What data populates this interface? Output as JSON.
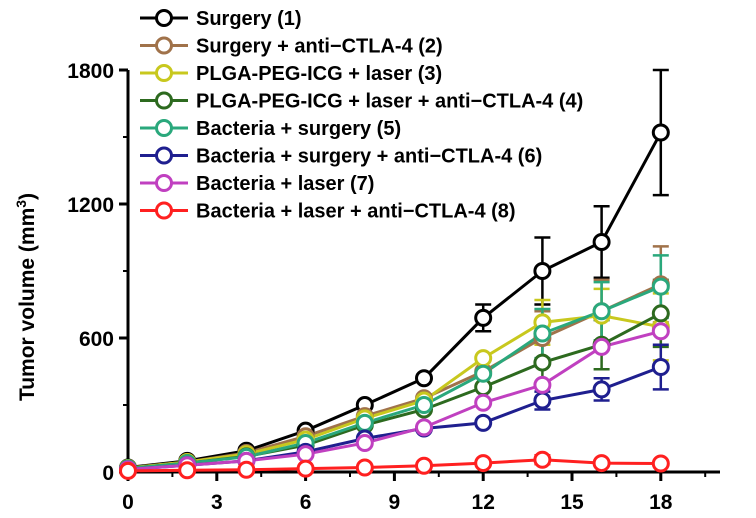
{
  "chart_data": {
    "type": "line",
    "title": "",
    "xlabel": "",
    "ylabel": "Tumor volume (mm",
    "ylabel_sup": "3",
    "ylabel_close": ")",
    "xlim": [
      0,
      20
    ],
    "ylim": [
      0,
      1800
    ],
    "x_ticks": [
      0,
      3,
      6,
      9,
      12,
      15,
      18
    ],
    "y_ticks": [
      0,
      600,
      1200,
      1800
    ],
    "grid": false,
    "legend_position": "top-left",
    "x": [
      0,
      2,
      4,
      6,
      8,
      10,
      12,
      14,
      16,
      18
    ],
    "series": [
      {
        "name": "Surgery (1)",
        "color": "#000000",
        "values": [
          20,
          50,
          95,
          185,
          300,
          420,
          690,
          900,
          1030,
          1520
        ],
        "errors": [
          0,
          0,
          0,
          0,
          0,
          0,
          60,
          150,
          160,
          280
        ]
      },
      {
        "name": "Surgery + anti−CTLA-4 (2)",
        "color": "#a0724a",
        "values": [
          18,
          45,
          85,
          160,
          250,
          330,
          450,
          600,
          720,
          840
        ],
        "errors": [
          0,
          0,
          0,
          0,
          0,
          0,
          0,
          120,
          140,
          170
        ]
      },
      {
        "name": "PLGA-PEG-ICG + laser (3)",
        "color": "#c8c81e",
        "values": [
          18,
          45,
          80,
          145,
          240,
          320,
          510,
          670,
          700,
          650
        ],
        "errors": [
          0,
          0,
          0,
          0,
          0,
          0,
          0,
          100,
          120,
          150
        ]
      },
      {
        "name": "PLGA-PEG-ICG + laser + anti−CTLA-4  (4)",
        "color": "#2d6a1f",
        "values": [
          16,
          40,
          70,
          120,
          210,
          280,
          380,
          490,
          570,
          710
        ],
        "errors": [
          0,
          0,
          0,
          0,
          0,
          0,
          0,
          100,
          110,
          150
        ]
      },
      {
        "name": "Bacteria + surgery (5)",
        "color": "#2aa87c",
        "values": [
          16,
          40,
          68,
          130,
          220,
          300,
          440,
          620,
          720,
          830
        ],
        "errors": [
          0,
          0,
          0,
          0,
          0,
          0,
          0,
          110,
          130,
          140
        ]
      },
      {
        "name": "Bacteria + surgery + anti−CTLA-4 (6)",
        "color": "#1f1f8f",
        "values": [
          12,
          30,
          50,
          90,
          150,
          195,
          220,
          320,
          370,
          470
        ],
        "errors": [
          0,
          0,
          0,
          0,
          0,
          0,
          0,
          40,
          50,
          100
        ]
      },
      {
        "name": "Bacteria + laser (7)",
        "color": "#c040c0",
        "values": [
          12,
          30,
          50,
          80,
          130,
          200,
          310,
          390,
          560,
          630
        ],
        "errors": [
          0,
          0,
          0,
          0,
          0,
          0,
          0,
          0,
          0,
          0
        ]
      },
      {
        "name": "Bacteria + laser + anti−CTLA-4 (8)",
        "color": "#ff2020",
        "values": [
          5,
          8,
          10,
          15,
          20,
          28,
          40,
          55,
          40,
          38
        ],
        "errors": [
          0,
          0,
          0,
          0,
          0,
          0,
          0,
          20,
          0,
          0
        ]
      }
    ]
  }
}
